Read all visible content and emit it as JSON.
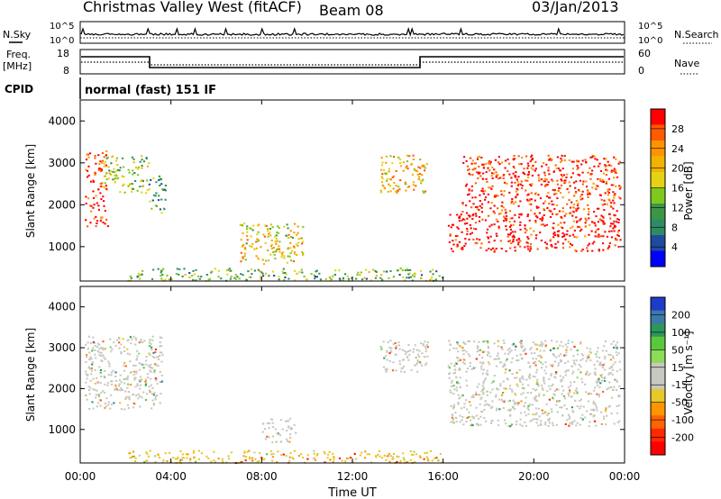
{
  "header": {
    "station": "Christmas Valley West (fitACF)",
    "beam": "Beam 08",
    "date": "03/Jan/2013"
  },
  "top_panels": {
    "nsky_label": "N.Sky",
    "nsearch_label": "N.Search",
    "noise_ticks": [
      "10^5",
      "10^0"
    ],
    "freq_label_1": "Freq.",
    "freq_label_2": "[MHz]",
    "freq_ticks": [
      "18",
      "8"
    ],
    "nave_label": "Nave",
    "nave_ticks": [
      "60",
      "0"
    ],
    "cpid_label": "CPID",
    "cpid_value": "normal (fast) 151 IF"
  },
  "x_axis": {
    "label": "Time UT",
    "ticks": [
      "00:00",
      "04:00",
      "08:00",
      "12:00",
      "16:00",
      "20:00",
      "00:00"
    ]
  },
  "power_colorbar": {
    "label": "Power [dB]",
    "ticks": [
      "28",
      "24",
      "20",
      "16",
      "12",
      "8",
      "4"
    ],
    "colors": [
      "#ff0000",
      "#ff5a00",
      "#ff9400",
      "#f0b400",
      "#e6d214",
      "#7fc81e",
      "#3c9646",
      "#2d8c64",
      "#1e4ba0",
      "#0000ff"
    ]
  },
  "velocity_colorbar": {
    "label": "Velocity [m s⁻¹]",
    "ticks": [
      "200",
      "100",
      "50",
      "15",
      "-15",
      "-50",
      "-100",
      "-200"
    ],
    "colors": [
      "#1e3cc8",
      "#3c78aa",
      "#2d965a",
      "#5ac83c",
      "#8cdc5a",
      "#c8c8c0",
      "#c8c8c0",
      "#e6c828",
      "#ff9600",
      "#ff6400",
      "#ff2800",
      "#ff0000"
    ]
  },
  "chart_data": [
    {
      "type": "heatmap",
      "title": "Power",
      "xlabel": "Time UT",
      "ylabel": "Slant Range [km]",
      "xlim": [
        0,
        24
      ],
      "ylim": [
        180,
        4500
      ],
      "y_ticks": [
        1000,
        2000,
        3000,
        4000
      ],
      "colorbar": {
        "label": "Power [dB]",
        "range": [
          0,
          30
        ]
      },
      "regions": [
        {
          "t": [
            0.2,
            1.2
          ],
          "r": [
            1500,
            3300
          ],
          "value": 28
        },
        {
          "t": [
            1.0,
            3.0
          ],
          "r": [
            2300,
            3200
          ],
          "value": 14
        },
        {
          "t": [
            3.0,
            3.8
          ],
          "r": [
            1800,
            2700
          ],
          "value": 10
        },
        {
          "t": [
            2.0,
            16.0
          ],
          "r": [
            200,
            500
          ],
          "value": 12
        },
        {
          "t": [
            7.0,
            9.8
          ],
          "r": [
            600,
            1600
          ],
          "value": 18
        },
        {
          "t": [
            13.2,
            15.3
          ],
          "r": [
            2300,
            3200
          ],
          "value": 20
        },
        {
          "t": [
            16.2,
            23.8
          ],
          "r": [
            900,
            1800
          ],
          "value": 30
        },
        {
          "t": [
            16.8,
            23.8
          ],
          "r": [
            1800,
            3200
          ],
          "value": 28
        }
      ]
    },
    {
      "type": "heatmap",
      "title": "Velocity",
      "xlabel": "Time UT",
      "ylabel": "Slant Range [km]",
      "xlim": [
        0,
        24
      ],
      "ylim": [
        180,
        4500
      ],
      "y_ticks": [
        1000,
        2000,
        3000,
        4000
      ],
      "colorbar": {
        "label": "Velocity [m s⁻¹]",
        "range": [
          -200,
          200
        ]
      },
      "regions": [
        {
          "t": [
            0.2,
            3.6
          ],
          "r": [
            1500,
            3300
          ],
          "value": 0
        },
        {
          "t": [
            2.0,
            16.0
          ],
          "r": [
            200,
            500
          ],
          "value": -60
        },
        {
          "t": [
            8.0,
            9.5
          ],
          "r": [
            700,
            1300
          ],
          "value": 0
        },
        {
          "t": [
            13.2,
            15.3
          ],
          "r": [
            2400,
            3200
          ],
          "value": 0
        },
        {
          "t": [
            16.2,
            23.8
          ],
          "r": [
            1100,
            3200
          ],
          "value": 0
        }
      ]
    }
  ]
}
